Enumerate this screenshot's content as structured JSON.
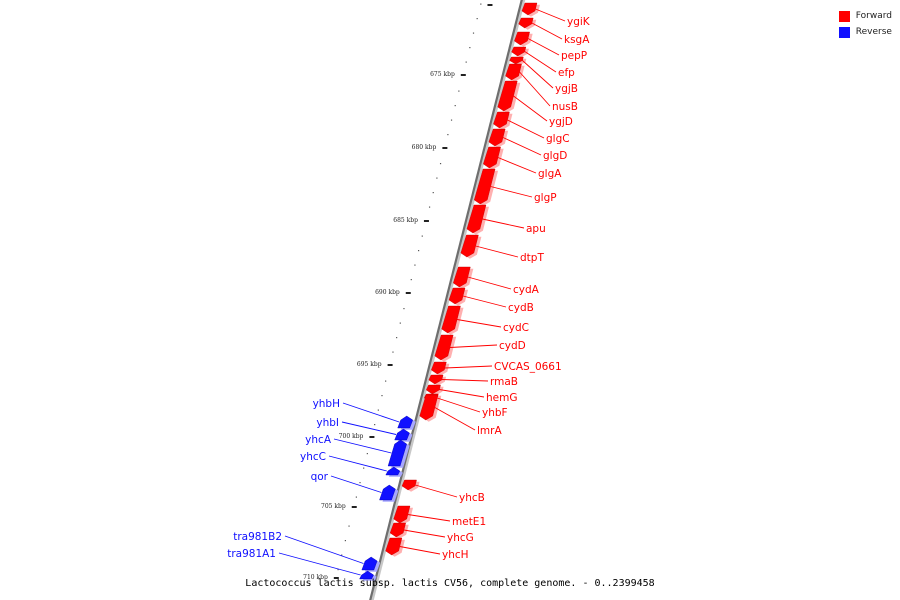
{
  "legend": {
    "forward_label": "Forward",
    "reverse_label": "Reverse",
    "forward_color": "#ff0000",
    "reverse_color": "#1010ff"
  },
  "caption": "Lactococcus lactis subsp. lactis CV56, complete genome. - 0..2399458",
  "axis": {
    "unit": "kbp",
    "tick_labels": [
      "675 kbp",
      "680 kbp",
      "685 kbp",
      "690 kbp",
      "695 kbp",
      "700 kbp",
      "705 kbp",
      "710 kbp"
    ]
  },
  "genes": [
    {
      "name": "ygiK",
      "strand": "forward"
    },
    {
      "name": "ksgA",
      "strand": "forward"
    },
    {
      "name": "pepP",
      "strand": "forward"
    },
    {
      "name": "efp",
      "strand": "forward"
    },
    {
      "name": "ygjB",
      "strand": "forward"
    },
    {
      "name": "nusB",
      "strand": "forward"
    },
    {
      "name": "ygjD",
      "strand": "forward"
    },
    {
      "name": "glgC",
      "strand": "forward"
    },
    {
      "name": "glgD",
      "strand": "forward"
    },
    {
      "name": "glgA",
      "strand": "forward"
    },
    {
      "name": "glgP",
      "strand": "forward"
    },
    {
      "name": "apu",
      "strand": "forward"
    },
    {
      "name": "dtpT",
      "strand": "forward"
    },
    {
      "name": "cydA",
      "strand": "forward"
    },
    {
      "name": "cydB",
      "strand": "forward"
    },
    {
      "name": "cydC",
      "strand": "forward"
    },
    {
      "name": "cydD",
      "strand": "forward"
    },
    {
      "name": "CVCAS_0661",
      "strand": "forward"
    },
    {
      "name": "rmaB",
      "strand": "forward"
    },
    {
      "name": "hemG",
      "strand": "forward"
    },
    {
      "name": "yhbF",
      "strand": "forward"
    },
    {
      "name": "lmrA",
      "strand": "forward"
    },
    {
      "name": "yhbH",
      "strand": "reverse"
    },
    {
      "name": "yhbI",
      "strand": "reverse"
    },
    {
      "name": "yhcA",
      "strand": "reverse"
    },
    {
      "name": "yhcC",
      "strand": "reverse"
    },
    {
      "name": "qor",
      "strand": "reverse"
    },
    {
      "name": "yhcB",
      "strand": "forward"
    },
    {
      "name": "metE1",
      "strand": "forward"
    },
    {
      "name": "yhcG",
      "strand": "forward"
    },
    {
      "name": "yhcH",
      "strand": "forward"
    },
    {
      "name": "tra981B2",
      "strand": "reverse"
    },
    {
      "name": "tra981A1",
      "strand": "reverse"
    }
  ]
}
